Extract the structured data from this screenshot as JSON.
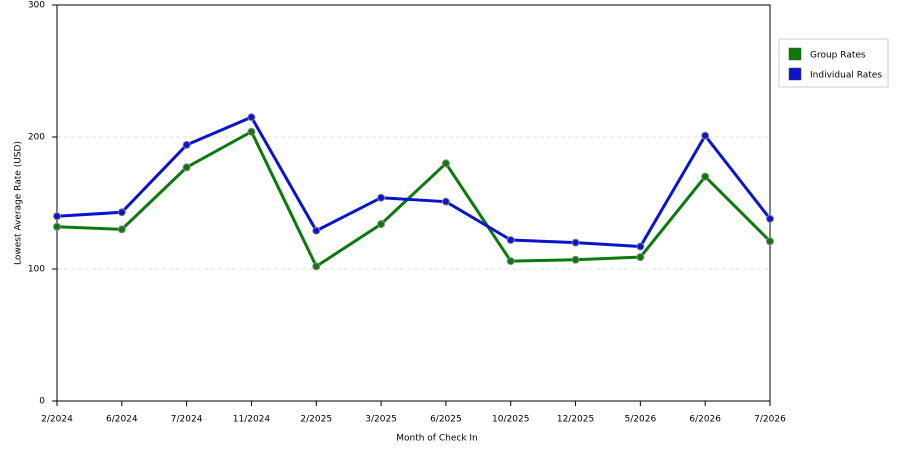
{
  "chart_data": {
    "type": "line",
    "x_label": "Month of Check In",
    "y_label": "Lowest Average Rate (USD)",
    "categories": [
      "2/2024",
      "6/2024",
      "7/2024",
      "11/2024",
      "2/2025",
      "3/2025",
      "6/2025",
      "10/2025",
      "12/2025",
      "5/2026",
      "6/2026",
      "7/2026"
    ],
    "series": [
      {
        "name": "Group Rates",
        "color": "#0a7a0a",
        "values": [
          132,
          130,
          177,
          204,
          102,
          134,
          180,
          106,
          107,
          109,
          170,
          121
        ]
      },
      {
        "name": "Individual Rates",
        "color": "#0a14cc",
        "values": [
          140,
          143,
          194,
          215,
          129,
          154,
          151,
          122,
          120,
          117,
          201,
          138
        ]
      }
    ],
    "ylim": [
      0,
      300
    ],
    "yticks": [
      0,
      100,
      200,
      300
    ],
    "grid": true,
    "legend": "right"
  }
}
